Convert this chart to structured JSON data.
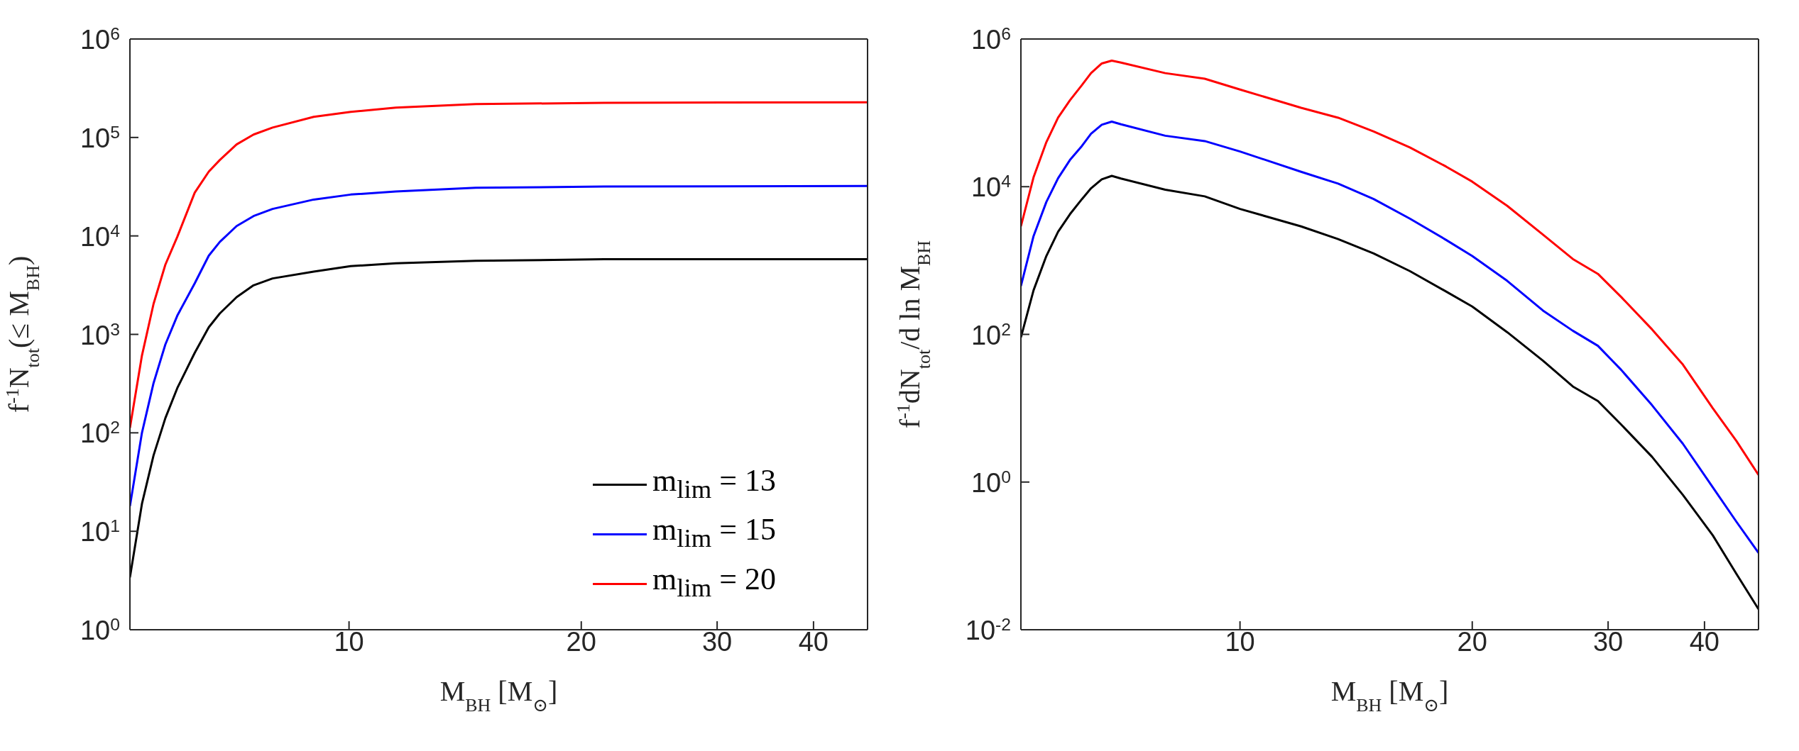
{
  "chart_data": [
    {
      "type": "line",
      "xlabel": "M$_{BH}$ [M$_{⊙}$]",
      "ylabel": "f$^{-1}$N$_{tot}$(≤ M$_{BH}$)",
      "log": "xy",
      "legend": "bottom right",
      "marker": "none",
      "line_style": "solid",
      "grid": false,
      "xlim": [
        5.2,
        47
      ],
      "xticks": [
        10,
        20,
        30,
        40
      ],
      "ylim": [
        1,
        1000000
      ],
      "yticks": [
        {
          "value": 1,
          "label": "10$^{0}$"
        },
        {
          "value": 10,
          "label": "10$^{1}$"
        },
        {
          "value": 100,
          "label": "10$^{2}$"
        },
        {
          "value": 1000,
          "label": "10$^{3}$"
        },
        {
          "value": 10000,
          "label": "10$^{4}$"
        },
        {
          "value": 100000,
          "label": "10$^{5}$"
        },
        {
          "value": 1000000,
          "label": "10$^{6}$"
        }
      ],
      "x": [
        5.2,
        5.39,
        5.58,
        5.78,
        5.99,
        6.31,
        6.58,
        6.8,
        7.15,
        7.52,
        7.96,
        9.0,
        10.05,
        11.5,
        14.6,
        21.4,
        47
      ],
      "series": [
        {
          "name": "m$_{lim}$ = 13",
          "color": "#000000",
          "values": [
            3.4,
            19,
            59,
            141,
            285,
            650,
            1180,
            1630,
            2390,
            3150,
            3700,
            4340,
            4930,
            5270,
            5590,
            5790,
            5800
          ]
        },
        {
          "name": "m$_{lim}$ = 15",
          "color": "#0000ff",
          "values": [
            18,
            100,
            320,
            790,
            1550,
            3300,
            6300,
            8700,
            12600,
            15900,
            18800,
            23400,
            26300,
            28300,
            30800,
            31700,
            32200
          ]
        },
        {
          "name": "m$_{lim}$ = 20",
          "color": "#ff0000",
          "values": [
            112,
            610,
            2040,
            5100,
            9800,
            27500,
            45000,
            59000,
            85000,
            107000,
            126000,
            162000,
            182000,
            201000,
            218000,
            225000,
            228000
          ]
        }
      ]
    },
    {
      "type": "line",
      "xlabel": "M$_{BH}$ [M$_{⊙}$]",
      "ylabel": "f$^{-1}$dN$_{tot}$/d ln M$_{BH}$",
      "log": "xy",
      "marker": "none",
      "line_style": "solid",
      "grid": false,
      "xlim": [
        5.2,
        47
      ],
      "xticks": [
        10,
        20,
        30,
        40
      ],
      "ylim": [
        0.01,
        1000000
      ],
      "yticks": [
        {
          "value": 0.01,
          "label": "10$^{-2}$"
        },
        {
          "value": 1,
          "label": "10$^{0}$"
        },
        {
          "value": 100,
          "label": "10$^{2}$"
        },
        {
          "value": 10000,
          "label": "10$^{4}$"
        },
        {
          "value": 1000000,
          "label": "10$^{6}$"
        }
      ],
      "x": [
        5.2,
        5.4,
        5.61,
        5.81,
        6.02,
        6.24,
        6.41,
        6.62,
        6.82,
        7.01,
        8.0,
        9.0,
        10,
        12,
        13.4,
        14.9,
        16.6,
        18.5,
        20,
        22.2,
        24.7,
        27,
        29.1,
        31.2,
        34.2,
        37.5,
        41,
        44,
        47
      ],
      "series": [
        {
          "color": "#000000",
          "values": [
            91,
            395,
            1150,
            2450,
            4240,
            6800,
            9500,
            12600,
            14000,
            12900,
            9100,
            7400,
            5000,
            2900,
            1950,
            1250,
            720,
            380,
            238,
            107,
            44,
            19.7,
            12.5,
            6.0,
            2.2,
            0.67,
            0.19,
            0.057,
            0.019
          ]
        },
        {
          "color": "#0000ff",
          "values": [
            450,
            2140,
            6200,
            13000,
            23000,
            35700,
            52000,
            69000,
            76000,
            70000,
            49000,
            41500,
            30000,
            15900,
            11000,
            6800,
            3700,
            1900,
            1150,
            530,
            210,
            112,
            70,
            33,
            11,
            3.3,
            0.85,
            0.29,
            0.11
          ]
        },
        {
          "color": "#ff0000",
          "values": [
            2900,
            13400,
            40000,
            86000,
            148000,
            238000,
            345000,
            467000,
            510000,
            480000,
            345000,
            290000,
            207000,
            117000,
            86000,
            56000,
            34000,
            18700,
            11700,
            5500,
            2240,
            1050,
            660,
            320,
            117,
            39,
            10,
            3.6,
            1.25
          ]
        }
      ]
    }
  ]
}
